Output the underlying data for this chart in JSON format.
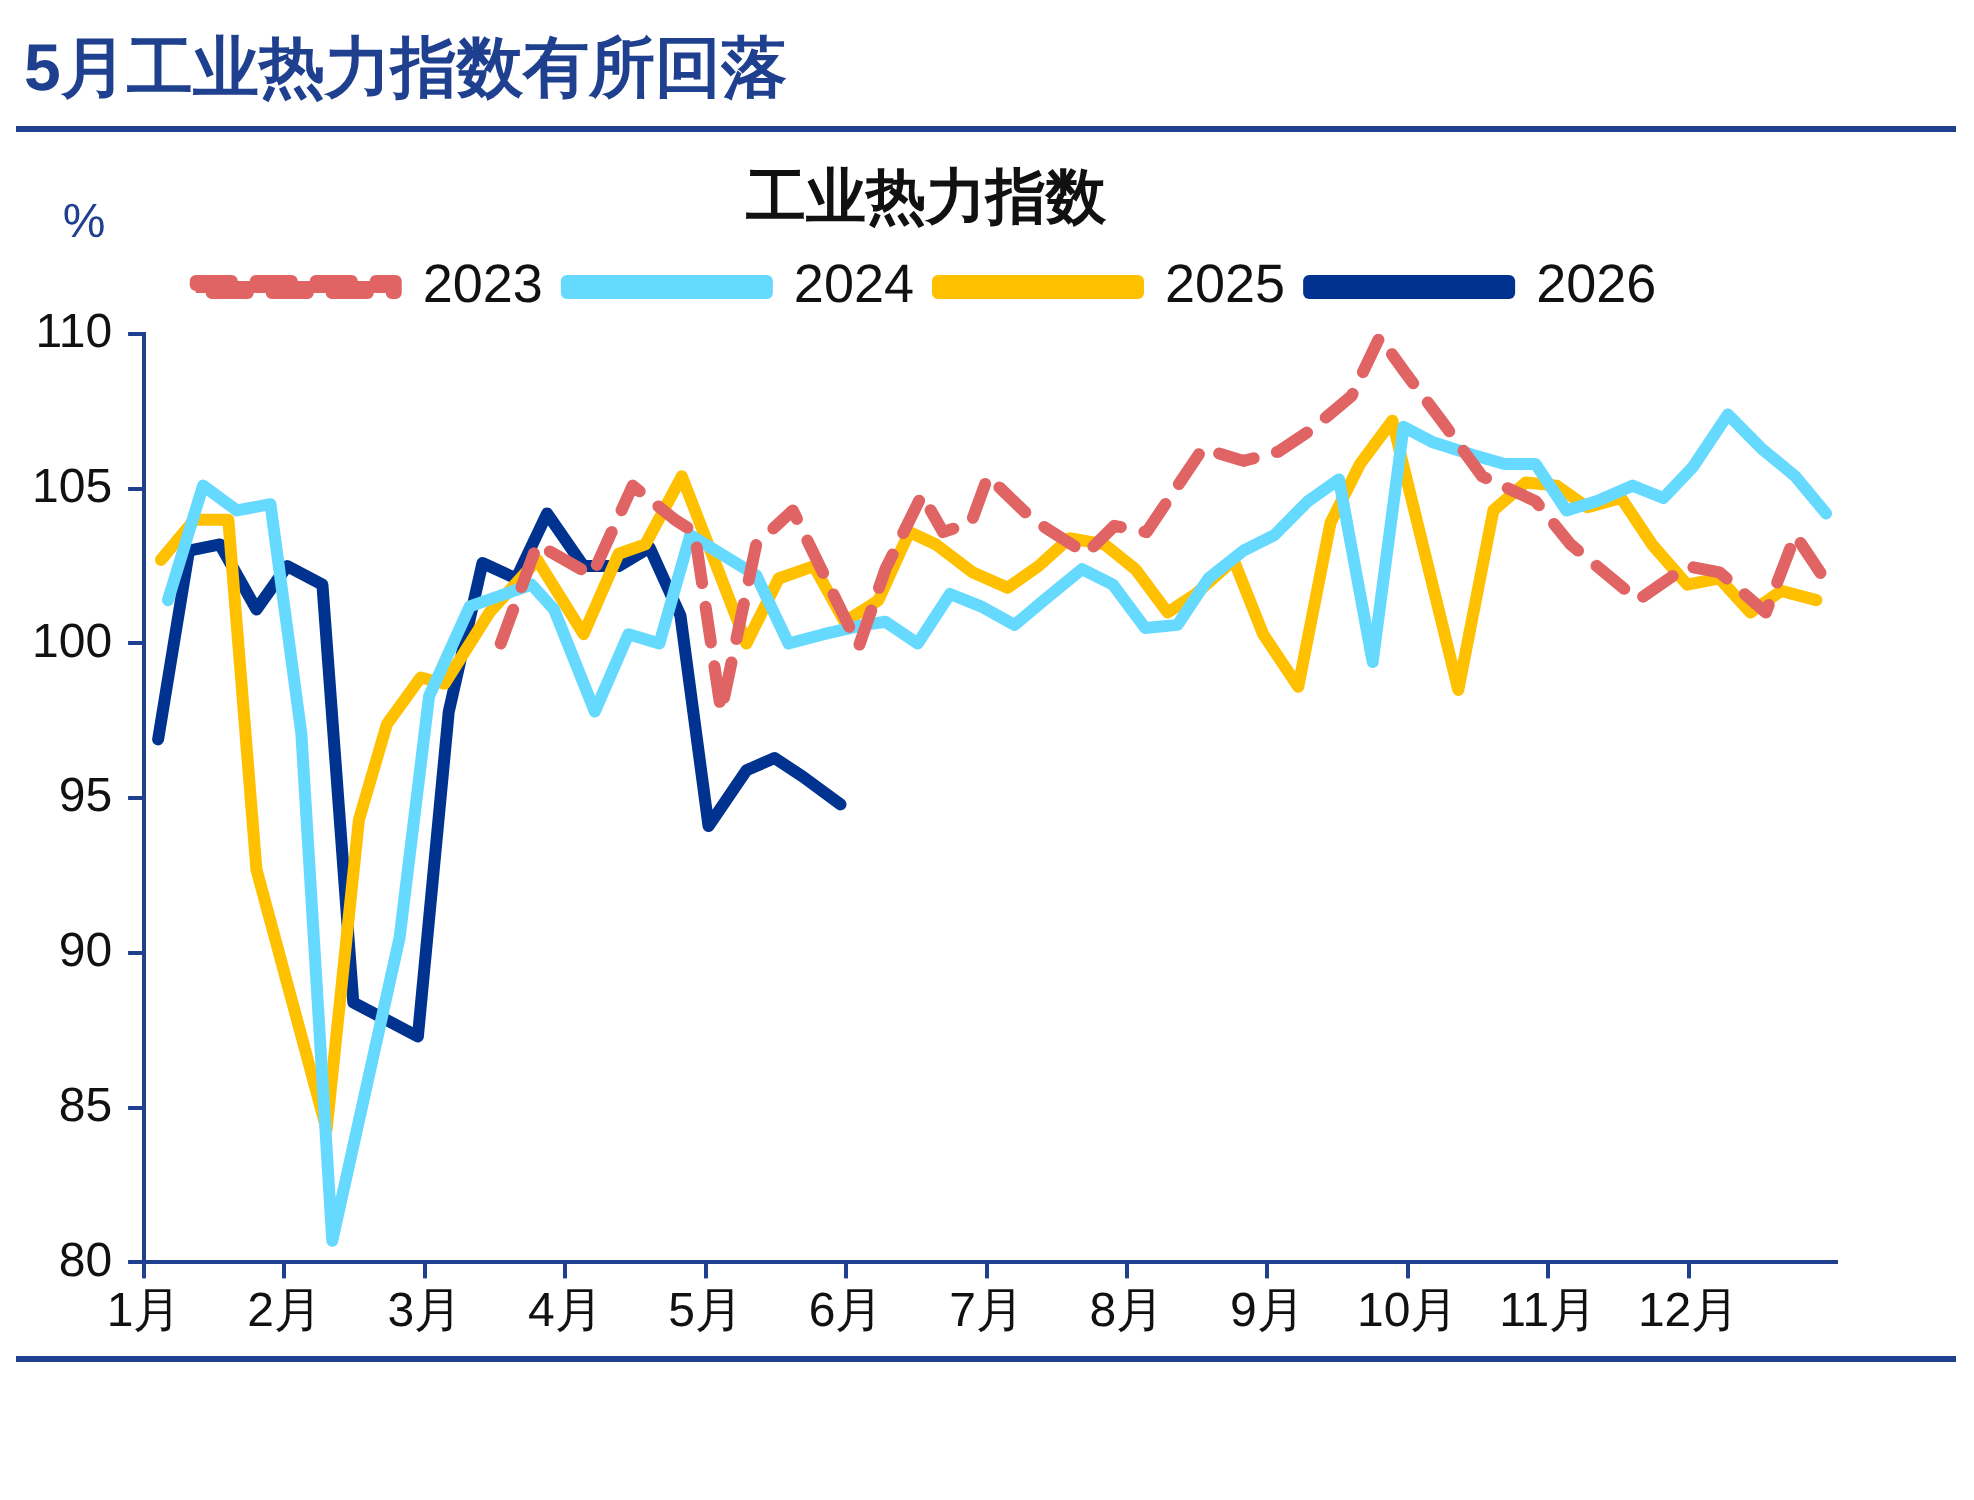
{
  "chart_data": {
    "type": "line",
    "title": "5月工业热力指数有所回落",
    "subtitle": "工业热力指数",
    "ylabel": "%",
    "xlim": [
      1,
      13.05
    ],
    "xticks": [
      {
        "value": 1,
        "label": "1月"
      },
      {
        "value": 2,
        "label": "2月"
      },
      {
        "value": 3,
        "label": "3月"
      },
      {
        "value": 4,
        "label": "4月"
      },
      {
        "value": 5,
        "label": "5月"
      },
      {
        "value": 6,
        "label": "6月"
      },
      {
        "value": 7,
        "label": "7月"
      },
      {
        "value": 8,
        "label": "8月"
      },
      {
        "value": 9,
        "label": "9月"
      },
      {
        "value": 10,
        "label": "10月"
      },
      {
        "value": 11,
        "label": "11月"
      },
      {
        "value": 12,
        "label": "12月"
      }
    ],
    "ylim": [
      80,
      110
    ],
    "yticks": [
      80,
      85,
      90,
      95,
      100,
      105,
      110
    ],
    "grid": false,
    "legend": "top",
    "marker": "none",
    "series": [
      {
        "name": "2023",
        "color": "#e06464",
        "line_style": "dashed",
        "x": [
          3.54,
          3.8,
          4.19,
          4.48,
          4.78,
          4.92,
          5.11,
          5.36,
          5.62,
          6.09,
          6.28,
          6.54,
          6.69,
          6.89,
          7.01,
          7.33,
          7.71,
          7.91,
          8.14,
          8.54,
          8.83,
          9.08,
          9.31,
          9.6,
          9.8,
          9.99,
          10.24,
          10.53,
          10.91,
          11.16,
          11.64,
          11.99,
          12.22,
          12.55,
          12.76,
          13.01
        ],
        "values": [
          100.0,
          103.2,
          102.2,
          105.1,
          104.0,
          103.6,
          97.8,
          103.2,
          104.3,
          99.9,
          102.4,
          104.8,
          103.6,
          103.9,
          105.4,
          104.0,
          102.9,
          103.8,
          103.6,
          106.3,
          105.9,
          106.2,
          106.9,
          108.0,
          109.9,
          108.7,
          107.2,
          105.4,
          104.6,
          103.2,
          101.4,
          102.5,
          102.3,
          101.0,
          103.5,
          101.8
        ]
      },
      {
        "name": "2024",
        "color": "#66d9ff",
        "line_style": "solid",
        "x": [
          1.17,
          1.42,
          1.66,
          1.9,
          2.12,
          2.34,
          2.82,
          3.03,
          3.32,
          3.76,
          3.92,
          4.21,
          4.45,
          4.67,
          4.89,
          5.36,
          5.59,
          5.84,
          6.13,
          6.28,
          6.51,
          6.74,
          6.96,
          7.2,
          7.41,
          7.68,
          7.9,
          8.13,
          8.36,
          8.58,
          8.83,
          9.05,
          9.29,
          9.51,
          9.75,
          9.97,
          10.18,
          10.46,
          10.69,
          10.91,
          11.13,
          11.35,
          11.6,
          11.82,
          12.03,
          12.28,
          12.52,
          12.76,
          12.98
        ],
        "values": [
          101.4,
          105.1,
          104.3,
          104.5,
          97.1,
          80.7,
          90.5,
          98.3,
          101.2,
          101.9,
          101.1,
          97.8,
          100.3,
          100.0,
          103.5,
          102.2,
          100.0,
          100.3,
          100.6,
          100.7,
          100.0,
          101.6,
          101.2,
          100.6,
          101.4,
          102.4,
          101.9,
          100.5,
          100.6,
          102.1,
          103.0,
          103.5,
          104.6,
          105.3,
          99.4,
          107.0,
          106.5,
          106.1,
          105.8,
          105.8,
          104.3,
          104.6,
          105.1,
          104.7,
          105.7,
          107.4,
          106.3,
          105.4,
          104.2
        ]
      },
      {
        "name": "2025",
        "color": "#ffc000",
        "line_style": "solid",
        "x": [
          1.12,
          1.36,
          1.6,
          1.8,
          2.3,
          2.53,
          2.73,
          2.97,
          3.14,
          3.46,
          3.8,
          4.13,
          4.38,
          4.57,
          4.83,
          5.29,
          5.52,
          5.77,
          5.99,
          6.13,
          6.23,
          6.45,
          6.64,
          6.9,
          7.15,
          7.37,
          7.59,
          7.84,
          8.06,
          8.29,
          8.49,
          8.76,
          8.97,
          9.22,
          9.45,
          9.66,
          9.89,
          10.36,
          10.61,
          10.84,
          11.06,
          11.28,
          11.52,
          11.74,
          11.99,
          12.22,
          12.44,
          12.66,
          12.91
        ],
        "values": [
          102.7,
          104.0,
          104.0,
          92.7,
          84.3,
          94.3,
          97.4,
          98.9,
          98.7,
          101.0,
          102.7,
          100.3,
          102.9,
          103.2,
          105.4,
          100.0,
          102.1,
          102.5,
          100.7,
          101.1,
          101.4,
          103.6,
          103.2,
          102.3,
          101.8,
          102.5,
          103.4,
          103.2,
          102.4,
          101.0,
          101.6,
          102.7,
          100.3,
          98.6,
          103.9,
          105.8,
          107.2,
          98.5,
          104.3,
          105.2,
          105.1,
          104.4,
          104.7,
          103.2,
          101.9,
          102.1,
          101.0,
          101.7,
          101.4
        ]
      },
      {
        "name": "2026",
        "color": "#00338f",
        "line_style": "solid",
        "x": [
          1.1,
          1.32,
          1.54,
          1.8,
          2.02,
          2.27,
          2.49,
          2.95,
          3.17,
          3.41,
          3.65,
          3.87,
          4.13,
          4.38,
          4.6,
          4.82,
          5.02,
          5.29,
          5.49,
          5.69,
          5.96
        ],
        "values": [
          96.9,
          103.0,
          103.2,
          101.1,
          102.5,
          101.9,
          88.4,
          87.3,
          97.8,
          102.6,
          102.1,
          104.2,
          102.5,
          102.5,
          103.1,
          100.9,
          94.1,
          95.9,
          96.3,
          95.7,
          94.8
        ]
      }
    ]
  }
}
